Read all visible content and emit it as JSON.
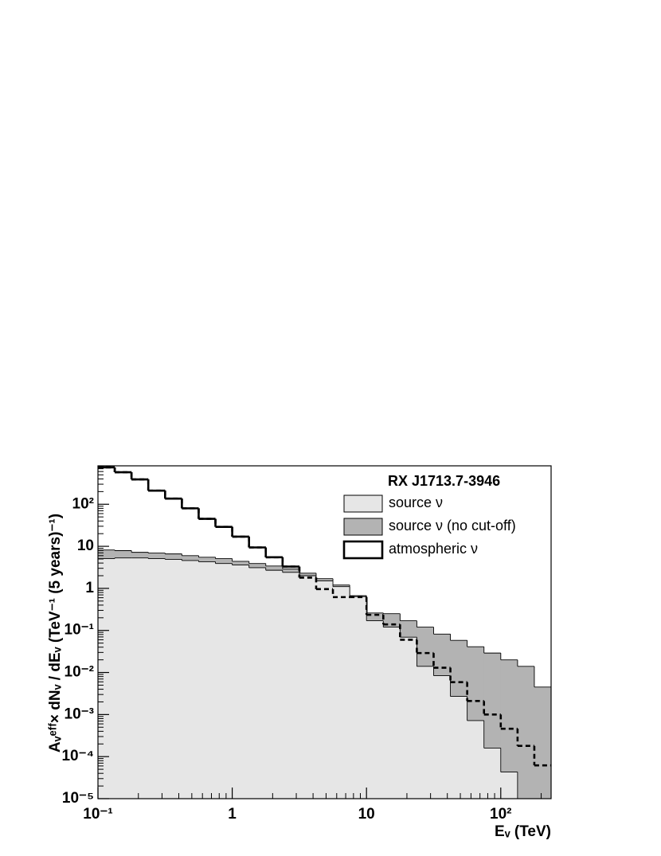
{
  "chart_data": {
    "type": "histogram",
    "title": "RX J1713.7-3946",
    "xlabel": "Eᵥ (TeV)",
    "ylabel": "Aᵥᵉᶠᶠ× dNᵥ / dEᵥ (TeV⁻¹ (5 years)⁻¹)",
    "xscale": "log",
    "yscale": "log",
    "xlim": [
      0.1,
      237.1
    ],
    "ylim": [
      1e-05,
      820
    ],
    "xticks": [
      {
        "value": 0.1,
        "label": "10⁻¹"
      },
      1,
      10,
      {
        "value": 100,
        "label": "10²"
      }
    ],
    "yticks": [
      {
        "value": 1e-05,
        "label": "10⁻⁵"
      },
      {
        "value": 0.0001,
        "label": "10⁻⁴"
      },
      {
        "value": 0.001,
        "label": "10⁻³"
      },
      {
        "value": 0.01,
        "label": "10⁻²"
      },
      {
        "value": 0.1,
        "label": "10⁻¹"
      },
      1,
      10,
      {
        "value": 100,
        "label": "10²"
      }
    ],
    "legend": "upper right",
    "bins": [
      0.1,
      0.1334,
      0.1778,
      0.2371,
      0.3162,
      0.4217,
      0.5623,
      0.7499,
      1,
      1.334,
      1.778,
      2.371,
      3.162,
      4.217,
      5.623,
      7.499,
      10,
      13.34,
      17.78,
      23.71,
      31.62,
      42.17,
      56.23,
      74.99,
      100,
      133.4,
      177.8,
      237.1
    ],
    "series": [
      {
        "name": "source ν",
        "color": "#e6e6e6",
        "histtype": "fill",
        "values": [
          5.1,
          5.3,
          5.3,
          5.1,
          4.9,
          4.6,
          4.3,
          3.9,
          3.6,
          3.1,
          2.7,
          2.4,
          2.0,
          1.5,
          1.1,
          0.64,
          0.17,
          0.12,
          0.069,
          0.014,
          0.0084,
          0.0027,
          0.00072,
          0.00016,
          4.3e-05,
          null,
          null
        ]
      },
      {
        "name": "source ν (no cut-off)",
        "color": "#b3b3b3",
        "histtype": "fill",
        "values": [
          8.2,
          7.9,
          7.2,
          6.9,
          6.6,
          6.0,
          5.5,
          5.1,
          4.4,
          3.9,
          3.4,
          2.9,
          2.3,
          1.7,
          1.2,
          0.67,
          0.26,
          0.25,
          0.17,
          0.12,
          0.082,
          0.058,
          0.041,
          0.029,
          0.02,
          0.014,
          0.0045
        ]
      },
      {
        "name": "atmospheric ν",
        "color": "#000000",
        "histtype": "step",
        "values": [
          752,
          578,
          389,
          211,
          136,
          80,
          45,
          29,
          17,
          9.4,
          5.5,
          3.3,
          1.8,
          0.96,
          0.62,
          0.62,
          0.235,
          0.139,
          0.06,
          0.029,
          0.013,
          0.0059,
          0.0021,
          0.001,
          0.00046,
          0.00018,
          6.2e-05
        ]
      }
    ]
  }
}
